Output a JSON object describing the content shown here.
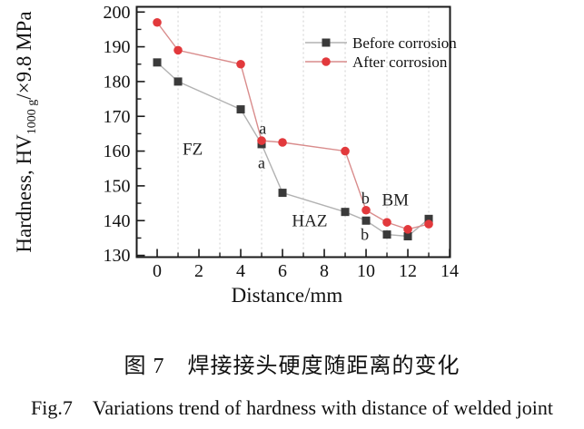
{
  "figure": {
    "caption_zh": "图 7　焊接接头硬度随距离的变化",
    "caption_en": "Fig.7　Variations trend of hardness with distance of welded joint"
  },
  "chart_data": {
    "type": "line",
    "title": "",
    "xlabel": "Distance/mm",
    "ylabel": {
      "prefix": "Hardness, HV",
      "subscript": "1000 g",
      "suffix": "/×9.8 MPa"
    },
    "xlim": [
      -0.98,
      14.02
    ],
    "ylim": [
      129.5,
      201.5
    ],
    "x_ticks": [
      0,
      2,
      4,
      6,
      8,
      10,
      12,
      14
    ],
    "x_minor_ticks": [
      1,
      3,
      5,
      7,
      9,
      11,
      13
    ],
    "y_ticks": [
      130,
      140,
      150,
      160,
      170,
      180,
      190,
      200
    ],
    "y_minor_ticks": [
      135,
      145,
      155,
      165,
      175,
      185,
      195
    ],
    "gridlines_x": [
      1,
      3,
      5,
      7,
      9,
      11,
      13
    ],
    "grid": "vertical-dashed",
    "legend_position": "top-right",
    "frame_color": "#1a1a1a",
    "gridline_color": "#cfcfcf",
    "x": [
      0,
      1,
      4,
      5,
      6,
      9,
      10,
      11,
      12,
      13
    ],
    "series": [
      {
        "name": "Before corrosion",
        "marker": "square",
        "marker_color": "#3a3a3a",
        "line_color": "#b2b2b2",
        "values": [
          185.5,
          180,
          172,
          162,
          148,
          142.5,
          140,
          136,
          135.5,
          140.5
        ]
      },
      {
        "name": "After corrosion",
        "marker": "circle",
        "marker_color": "#e2393c",
        "line_color": "#d98c8c",
        "values": [
          197,
          189,
          185,
          163,
          162.5,
          160,
          143,
          139.5,
          137.5,
          139
        ]
      }
    ],
    "zone_labels": [
      {
        "text": "FZ",
        "x": 1.7,
        "y": 160.5
      },
      {
        "text": "HAZ",
        "x": 7.3,
        "y": 140.0
      },
      {
        "text": "BM",
        "x": 11.4,
        "y": 146.0
      }
    ],
    "point_labels": [
      {
        "text": "a",
        "x": 5.05,
        "y": 166.5
      },
      {
        "text": "a",
        "x": 5.0,
        "y": 156.6
      },
      {
        "text": "b",
        "x": 9.97,
        "y": 146.4
      },
      {
        "text": "b",
        "x": 9.94,
        "y": 136.0
      }
    ]
  }
}
